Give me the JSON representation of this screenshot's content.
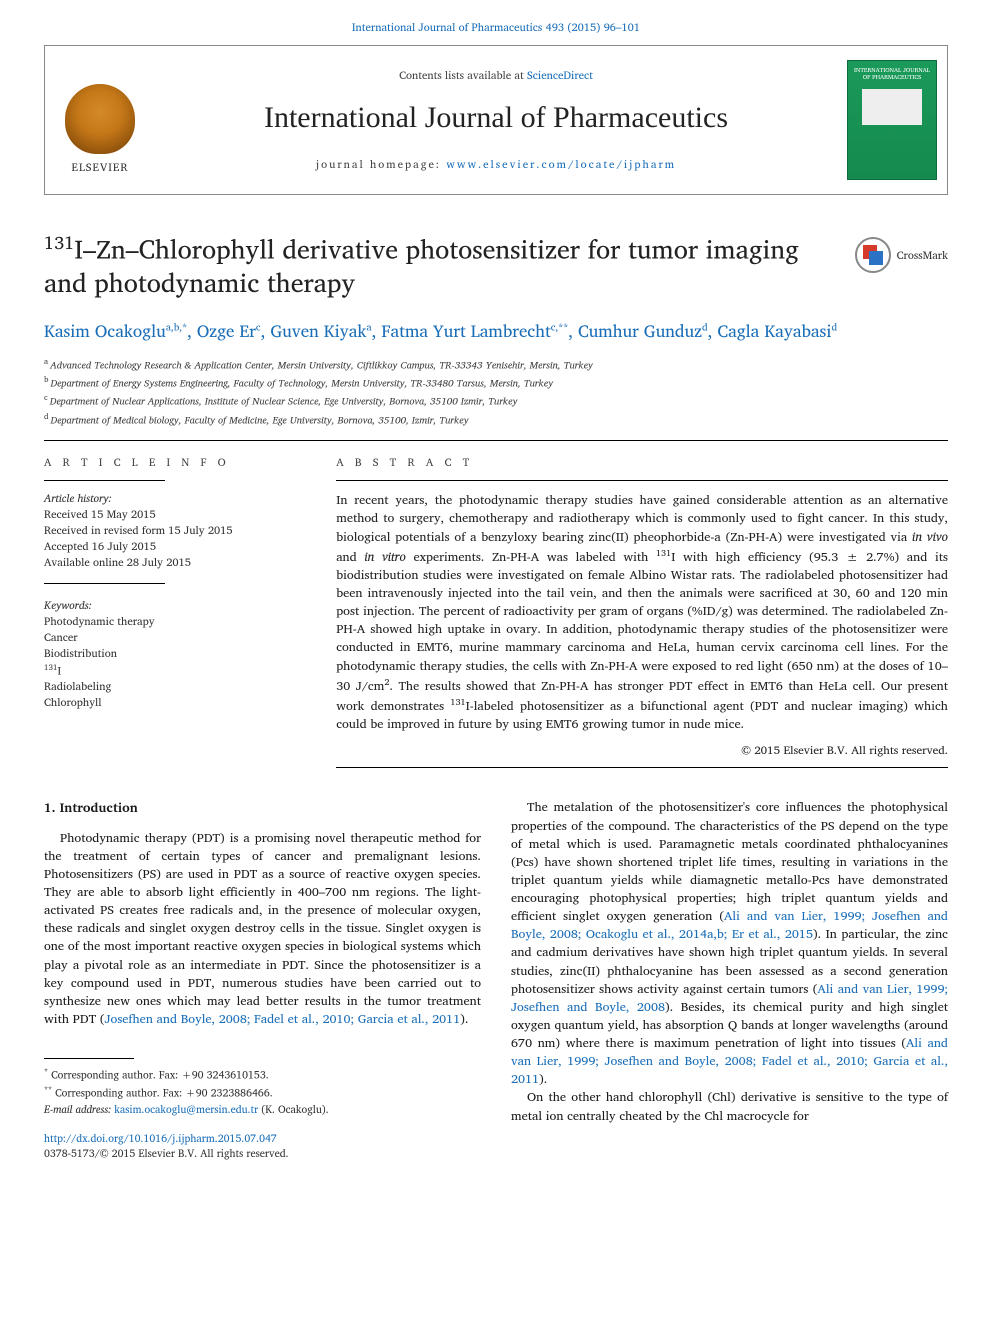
{
  "top_link": "International Journal of Pharmaceutics 493 (2015) 96–101",
  "header": {
    "contents_prefix": "Contents lists available at ",
    "contents_link": "ScienceDirect",
    "journal": "International Journal of Pharmaceutics",
    "homepage_prefix": "journal homepage: ",
    "homepage_link": "www.elsevier.com/locate/ijpharm",
    "elsevier_label": "ELSEVIER",
    "cover_title": "INTERNATIONAL JOURNAL OF PHARMACEUTICS"
  },
  "title": {
    "iso": "131",
    "rest": "I–Zn–Chlorophyll derivative photosensitizer for tumor imaging and photodynamic therapy"
  },
  "crossmark_label": "CrossMark",
  "authors_html": "Kasim Ocakoglu<sup class='sup'>a,b,*</sup>, Ozge Er<sup class='sup'>c</sup>, Guven Kiyak<sup class='sup'>a</sup>, Fatma Yurt Lambrecht<sup class='sup'>c,**</sup>, Cumhur Gunduz<sup class='sup'>d</sup>, Cagla Kayabasi<sup class='sup'>d</sup>",
  "affiliations": [
    {
      "lbl": "a",
      "text": "Advanced Technology Research & Application Center, Mersin University, Ciftlikkoy Campus, TR-33343 Yenisehir, Mersin, Turkey"
    },
    {
      "lbl": "b",
      "text": "Department of Energy Systems Engineering, Faculty of Technology, Mersin University, TR-33480 Tarsus, Mersin, Turkey"
    },
    {
      "lbl": "c",
      "text": "Department of Nuclear Applications, Institute of Nuclear Science, Ege University, Bornova, 35100 Izmir, Turkey"
    },
    {
      "lbl": "d",
      "text": "Department of Medical biology, Faculty of Medicine, Ege University, Bornova, 35100, Izmir, Turkey"
    }
  ],
  "article_info": {
    "label": "A R T I C L E  I N F O",
    "history_hdr": "Article history:",
    "history": [
      "Received 15 May 2015",
      "Received in revised form 15 July 2015",
      "Accepted 16 July 2015",
      "Available online 28 July 2015"
    ],
    "keywords_hdr": "Keywords:",
    "keywords": [
      "Photodynamic therapy",
      "Cancer",
      "Biodistribution",
      "131I",
      "Radiolabeling",
      "Chlorophyll"
    ]
  },
  "abstract": {
    "label": "A B S T R A C T",
    "text": "In recent years, the photodynamic therapy studies have gained considerable attention as an alternative method to surgery, chemotherapy and radiotherapy which is commonly used to fight cancer. In this study, biological potentials of a benzyloxy bearing zinc(II) pheophorbide-a (Zn-PH-A) were investigated via in vivo and in vitro experiments. Zn-PH-A was labeled with 131I with high efficiency (95.3 ± 2.7%) and its biodistribution studies were investigated on female Albino Wistar rats. The radiolabeled photosensitizer had been intravenously injected into the tail vein, and then the animals were sacrificed at 30, 60 and 120 min post injection. The percent of radioactivity per gram of organs (%ID/g) was determined. The radiolabeled Zn-PH-A showed high uptake in ovary. In addition, photodynamic therapy studies of the photosensitizer were conducted in EMT6, murine mammary carcinoma and HeLa, human cervix carcinoma cell lines. For the photodynamic therapy studies, the cells with Zn-PH-A were exposed to red light (650 nm) at the doses of 10–30 J/cm2. The results showed that Zn-PH-A has stronger PDT effect in EMT6 than HeLa cell. Our present work demonstrates 131I-labeled photosensitizer as a bifunctional agent (PDT and nuclear imaging) which could be improved in future by using EMT6 growing tumor in nude mice.",
    "copyright": "© 2015 Elsevier B.V. All rights reserved."
  },
  "intro": {
    "heading": "1. Introduction",
    "p1": "Photodynamic therapy (PDT) is a promising novel therapeutic method for the treatment of certain types of cancer and premalignant lesions. Photosensitizers (PS) are used in PDT as a source of reactive oxygen species. They are able to absorb light efficiently in 400–700 nm regions. The light-activated PS creates free radicals and, in the presence of molecular oxygen, these radicals and singlet oxygen destroy cells in the tissue. Singlet oxygen is one of the most important reactive oxygen species in biological systems which play a pivotal role as an intermediate in PDT. Since the photosensitizer is a key compound used in PDT, numerous studies have been carried out to synthesize new ones which may lead better results in the tumor treatment with PDT (",
    "p1_ref": "Josefhen and Boyle, 2008; Fadel et al., 2010; Garcia et al., 2011",
    "p1_end": ").",
    "p2a": "The metalation of the photosensitizer's core influences the photophysical properties of the compound. The characteristics of the PS depend on the type of metal which is used. Paramagnetic metals coordinated phthalocyanines (Pcs) have shown shortened triplet life times, resulting in variations in the triplet quantum yields while diamagnetic metallo-Pcs have demonstrated encouraging photophysical properties; high triplet quantum yields and efficient singlet oxygen generation (",
    "p2a_ref": "Ali and van Lier, 1999; Josefhen and Boyle, 2008; Ocakoglu et al., 2014a,b; Er et al., 2015",
    "p2a_end": "). In particular, the zinc and cadmium derivatives have shown high triplet quantum yields. In several studies, zinc(II) phthalocyanine has been assessed as a second generation photosensitizer shows activity against certain tumors (",
    "p2b_ref": "Ali and van Lier, 1999; Josefhen and Boyle, 2008",
    "p2b_end": "). Besides, its chemical purity and high singlet oxygen quantum yield, has absorption Q bands at longer wavelengths (around 670 nm) where there is maximum penetration of light into tissues (",
    "p2c_ref": "Ali and van Lier, 1999; Josefhen and Boyle, 2008; Fadel et al., 2010; Garcia et al., 2011",
    "p2c_end": ").",
    "p3": "On the other hand chlorophyll (Chl) derivative is sensitive to the type of metal ion centrally cheated by the Chl macrocycle for"
  },
  "footnotes": {
    "f1_mark": "*",
    "f1": "Corresponding author. Fax: +90 3243610153.",
    "f2_mark": "**",
    "f2": "Corresponding author. Fax: +90 2323886466.",
    "email_lbl": "E-mail address: ",
    "email": "kasim.ocakoglu@mersin.edu.tr",
    "email_who": " (K. Ocakoglu)."
  },
  "doi": {
    "link": "http://dx.doi.org/10.1016/j.ijpharm.2015.07.047",
    "issn_line": "0378-5173/© 2015 Elsevier B.V. All rights reserved."
  },
  "colors": {
    "link": "#1a6eb8",
    "text": "#1a1a1a",
    "cover_bg": "#1a9a5a"
  }
}
